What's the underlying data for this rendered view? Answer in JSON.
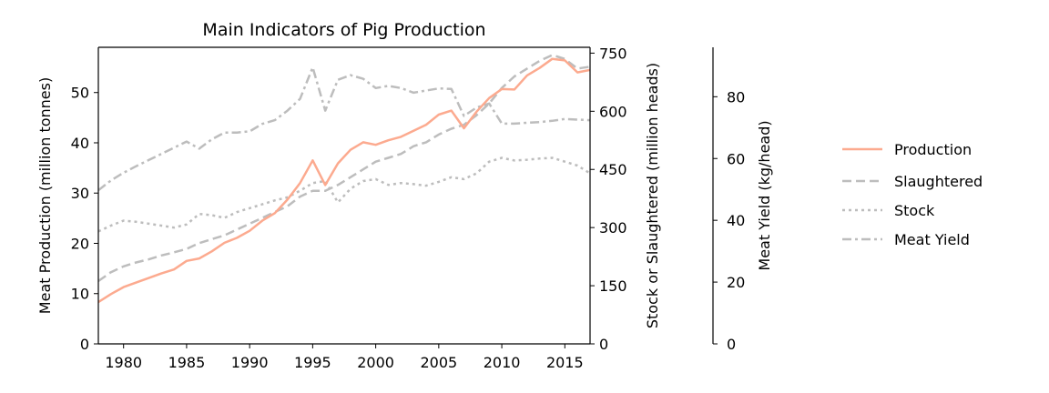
{
  "chart_data": {
    "type": "line",
    "title": "Main Indicators of Pig Production",
    "x_ticks": [
      1980,
      1985,
      1990,
      1995,
      2000,
      2005,
      2010,
      2015
    ],
    "xlim": [
      1978,
      2017
    ],
    "axes": {
      "left": {
        "label": "Meat Production (million tonnes)",
        "ylim": [
          0,
          59
        ],
        "ticks": [
          0,
          10,
          20,
          30,
          40,
          50
        ]
      },
      "right1": {
        "label": "Stock or Slaughtered (million heads)",
        "ylim": [
          0,
          765
        ],
        "ticks": [
          0,
          150,
          300,
          450,
          600,
          750
        ]
      },
      "right2": {
        "label": "Meat Yield (kg/head)",
        "ylim": [
          0,
          96
        ],
        "ticks": [
          0,
          20,
          40,
          60,
          80
        ]
      }
    },
    "series": [
      {
        "name": "Production",
        "axis": "left",
        "color": "#fcaa8f",
        "dash": "solid",
        "x": [
          1978,
          1979,
          1980,
          1981,
          1982,
          1983,
          1984,
          1985,
          1986,
          1987,
          1988,
          1989,
          1990,
          1991,
          1992,
          1993,
          1994,
          1995,
          1996,
          1997,
          1998,
          1999,
          2000,
          2001,
          2002,
          2003,
          2004,
          2005,
          2006,
          2007,
          2008,
          2009,
          2010,
          2011,
          2012,
          2013,
          2014,
          2015,
          2016,
          2017
        ],
        "values": [
          8.3,
          9.9,
          11.3,
          12.2,
          13.1,
          14.0,
          14.8,
          16.5,
          17.0,
          18.4,
          20.1,
          21.1,
          22.5,
          24.5,
          26.0,
          28.7,
          32.0,
          36.5,
          31.6,
          35.9,
          38.6,
          40.1,
          39.6,
          40.5,
          41.2,
          42.4,
          43.6,
          45.6,
          46.4,
          42.9,
          46.2,
          48.9,
          50.7,
          50.6,
          53.4,
          54.9,
          56.7,
          56.4,
          54.0,
          54.5
        ]
      },
      {
        "name": "Slaughtered",
        "axis": "right1",
        "color": "#bdbdbd",
        "dash": "dashed",
        "x": [
          1978,
          1979,
          1980,
          1981,
          1982,
          1983,
          1984,
          1985,
          1986,
          1987,
          1988,
          1989,
          1990,
          1991,
          1992,
          1993,
          1994,
          1995,
          1996,
          1997,
          1998,
          1999,
          2000,
          2001,
          2002,
          2003,
          2004,
          2005,
          2006,
          2007,
          2008,
          2009,
          2010,
          2011,
          2012,
          2013,
          2014,
          2015,
          2016,
          2017
        ],
        "values": [
          162,
          185,
          200,
          210,
          218,
          228,
          236,
          245,
          260,
          270,
          280,
          295,
          310,
          325,
          340,
          355,
          380,
          395,
          395,
          410,
          430,
          450,
          470,
          480,
          490,
          510,
          520,
          540,
          555,
          565,
          590,
          620,
          660,
          690,
          710,
          730,
          745,
          735,
          710,
          715
        ]
      },
      {
        "name": "Stock",
        "axis": "right1",
        "color": "#bdbdbd",
        "dash": "dotted",
        "x": [
          1978,
          1979,
          1980,
          1981,
          1982,
          1983,
          1984,
          1985,
          1986,
          1987,
          1988,
          1989,
          1990,
          1991,
          1992,
          1993,
          1994,
          1995,
          1996,
          1997,
          1998,
          1999,
          2000,
          2001,
          2002,
          2003,
          2004,
          2005,
          2006,
          2007,
          2008,
          2009,
          2010,
          2011,
          2012,
          2013,
          2014,
          2015,
          2016,
          2017
        ],
        "values": [
          290,
          305,
          318,
          315,
          310,
          305,
          300,
          308,
          335,
          332,
          325,
          340,
          350,
          360,
          370,
          378,
          395,
          415,
          420,
          365,
          400,
          420,
          425,
          410,
          415,
          412,
          408,
          418,
          430,
          425,
          440,
          470,
          480,
          473,
          475,
          478,
          480,
          470,
          460,
          440
        ]
      },
      {
        "name": "Meat Yield",
        "axis": "right2",
        "color": "#bdbdbd",
        "dash": "dashdot",
        "x": [
          1978,
          1979,
          1980,
          1981,
          1982,
          1983,
          1984,
          1985,
          1986,
          1987,
          1988,
          1989,
          1990,
          1991,
          1992,
          1993,
          1994,
          1995,
          1996,
          1997,
          1998,
          1999,
          2000,
          2001,
          2002,
          2003,
          2004,
          2005,
          2006,
          2007,
          2008,
          2009,
          2010,
          2011,
          2012,
          2013,
          2014,
          2015,
          2016,
          2017
        ],
        "values": [
          49.7,
          52.9,
          55.4,
          57.5,
          59.5,
          61.5,
          63.5,
          65.5,
          63.2,
          66.2,
          68.4,
          68.4,
          68.8,
          71.2,
          72.4,
          75.5,
          79.3,
          89.5,
          75.5,
          85.5,
          87.0,
          85.8,
          82.8,
          83.5,
          82.8,
          81.3,
          82.0,
          82.7,
          82.5,
          73.8,
          76.5,
          77.8,
          71.3,
          71.3,
          71.6,
          71.8,
          72.2,
          72.8,
          72.6,
          72.4
        ]
      }
    ]
  }
}
